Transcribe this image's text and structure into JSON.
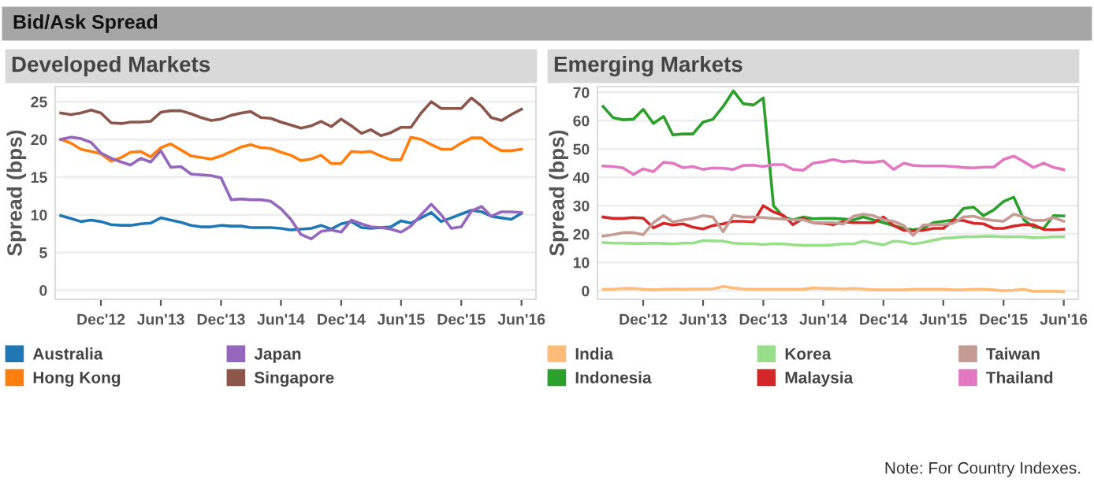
{
  "chart_data": [
    {
      "type": "line",
      "title": "Developed Markets",
      "ylabel": "Spread (bps)",
      "annotations": [
        "Bid/Ask Spread"
      ],
      "x": [
        "2012-08",
        "2012-09",
        "2012-10",
        "2012-11",
        "2012-12",
        "2013-01",
        "2013-02",
        "2013-03",
        "2013-04",
        "2013-05",
        "2013-06",
        "2013-07",
        "2013-08",
        "2013-09",
        "2013-10",
        "2013-11",
        "2013-12",
        "2014-01",
        "2014-02",
        "2014-03",
        "2014-04",
        "2014-05",
        "2014-06",
        "2014-07",
        "2014-08",
        "2014-09",
        "2014-10",
        "2014-11",
        "2014-12",
        "2015-01",
        "2015-02",
        "2015-03",
        "2015-04",
        "2015-05",
        "2015-06",
        "2015-07",
        "2015-08",
        "2015-09",
        "2015-10",
        "2015-11",
        "2015-12",
        "2016-01",
        "2016-02",
        "2016-03",
        "2016-04",
        "2016-05",
        "2016-06"
      ],
      "xlim": [
        "2012-07-15",
        "2016-07-15"
      ],
      "xticks": [
        {
          "value": "2012-12",
          "label": "Dec'12"
        },
        {
          "value": "2013-06",
          "label": "Jun'13"
        },
        {
          "value": "2013-12",
          "label": "Dec'13"
        },
        {
          "value": "2014-06",
          "label": "Jun'14"
        },
        {
          "value": "2014-12",
          "label": "Dec'14"
        },
        {
          "value": "2015-06",
          "label": "Jun'15"
        },
        {
          "value": "2015-12",
          "label": "Dec'15"
        },
        {
          "value": "2016-06",
          "label": "Jun'16"
        }
      ],
      "ylim": [
        -1.2,
        27
      ],
      "yticks": [
        0,
        5,
        10,
        15,
        20,
        25
      ],
      "grid": "y",
      "legend": "bottom",
      "series": [
        {
          "name": "Australia",
          "color": "#1f77b4",
          "values": [
            9.9,
            9.5,
            9.1,
            9.3,
            9.1,
            8.7,
            8.6,
            8.6,
            8.8,
            8.9,
            9.6,
            9.3,
            9.0,
            8.6,
            8.4,
            8.4,
            8.6,
            8.5,
            8.5,
            8.3,
            8.3,
            8.3,
            8.2,
            8.0,
            8.1,
            8.2,
            8.6,
            8.1,
            8.8,
            9.1,
            8.3,
            8.2,
            8.3,
            8.4,
            9.2,
            8.9,
            9.6,
            10.3,
            9.1,
            9.6,
            10.1,
            10.6,
            10.4,
            9.8,
            9.6,
            9.4,
            10.2
          ]
        },
        {
          "name": "Hong Kong",
          "color": "#ff7f0e",
          "values": [
            20,
            19.5,
            18.7,
            18.4,
            18.1,
            17.1,
            17.6,
            18.3,
            18.4,
            17.7,
            18.9,
            19.4,
            18.6,
            17.8,
            17.6,
            17.4,
            17.8,
            18.4,
            19,
            19.3,
            18.9,
            18.8,
            18.3,
            17.9,
            17.2,
            17.4,
            17.9,
            16.8,
            16.8,
            18.4,
            18.3,
            18.4,
            17.8,
            17.3,
            17.3,
            20.3,
            20,
            19.3,
            18.7,
            18.7,
            19.5,
            20.2,
            20.2,
            19.2,
            18.5,
            18.5,
            18.7
          ]
        },
        {
          "name": "Japan",
          "color": "#9467bd",
          "values": [
            20,
            20.3,
            20.1,
            19.6,
            18.2,
            17.5,
            17,
            16.6,
            17.5,
            17,
            18.5,
            16.3,
            16.4,
            15.4,
            15.3,
            15.2,
            14.9,
            12,
            12.1,
            12,
            12,
            11.8,
            10.8,
            9.4,
            7.4,
            6.8,
            7.8,
            8,
            7.7,
            9.3,
            8.8,
            8.4,
            8.3,
            8.1,
            7.7,
            8.5,
            10,
            11.4,
            10,
            8.2,
            8.4,
            10.5,
            11.1,
            9.8,
            10.4,
            10.4,
            10.3
          ]
        },
        {
          "name": "Singapore",
          "color": "#8c564b",
          "values": [
            23.5,
            23.3,
            23.5,
            23.9,
            23.5,
            22.2,
            22.1,
            22.3,
            22.3,
            22.4,
            23.6,
            23.8,
            23.8,
            23.4,
            22.9,
            22.5,
            22.7,
            23.2,
            23.5,
            23.7,
            22.9,
            22.8,
            22.3,
            21.9,
            21.5,
            21.8,
            22.4,
            21.7,
            22.7,
            21.8,
            20.8,
            21.3,
            20.5,
            20.9,
            21.6,
            21.6,
            23.5,
            25,
            24.1,
            24.1,
            24.1,
            25.5,
            24.4,
            22.9,
            22.5,
            23.3,
            24
          ]
        }
      ]
    },
    {
      "type": "line",
      "title": "Emerging Markets",
      "ylabel": "Spread (bps)",
      "annotations": [
        "Note: For Country Indexes."
      ],
      "x": [
        "2012-08",
        "2012-09",
        "2012-10",
        "2012-11",
        "2012-12",
        "2013-01",
        "2013-02",
        "2013-03",
        "2013-04",
        "2013-05",
        "2013-06",
        "2013-07",
        "2013-08",
        "2013-09",
        "2013-10",
        "2013-11",
        "2013-12",
        "2014-01",
        "2014-02",
        "2014-03",
        "2014-04",
        "2014-05",
        "2014-06",
        "2014-07",
        "2014-08",
        "2014-09",
        "2014-10",
        "2014-11",
        "2014-12",
        "2015-01",
        "2015-02",
        "2015-03",
        "2015-04",
        "2015-05",
        "2015-06",
        "2015-07",
        "2015-08",
        "2015-09",
        "2015-10",
        "2015-11",
        "2015-12",
        "2016-01",
        "2016-02",
        "2016-03",
        "2016-04",
        "2016-05",
        "2016-06"
      ],
      "xlim": [
        "2012-07-15",
        "2016-07-15"
      ],
      "xticks": [
        {
          "value": "2012-12",
          "label": "Dec'12"
        },
        {
          "value": "2013-06",
          "label": "Jun'13"
        },
        {
          "value": "2013-12",
          "label": "Dec'13"
        },
        {
          "value": "2014-06",
          "label": "Jun'14"
        },
        {
          "value": "2014-12",
          "label": "Dec'14"
        },
        {
          "value": "2015-06",
          "label": "Jun'15"
        },
        {
          "value": "2015-12",
          "label": "Dec'15"
        },
        {
          "value": "2016-06",
          "label": "Jun'16"
        }
      ],
      "ylim": [
        -3,
        72
      ],
      "yticks": [
        0,
        10,
        20,
        30,
        40,
        50,
        60,
        70
      ],
      "grid": "y",
      "legend": "bottom",
      "series": [
        {
          "name": "India",
          "color": "#ffbb78",
          "values": [
            0.5,
            0.5,
            0.8,
            0.8,
            0.5,
            0.3,
            0.5,
            0.6,
            0.5,
            0.6,
            0.6,
            0.7,
            1.5,
            1,
            0.6,
            0.5,
            0.5,
            0.5,
            0.5,
            0.5,
            0.5,
            1,
            0.8,
            0.8,
            0.6,
            0.8,
            0.6,
            0.3,
            0.3,
            0.3,
            0.3,
            0.5,
            0.5,
            0.5,
            0.5,
            0.3,
            0.3,
            0.5,
            0.5,
            0.3,
            0,
            0.2,
            0.5,
            -0.2,
            -0.2,
            -0.2,
            -0.3
          ]
        },
        {
          "name": "Indonesia",
          "color": "#2ca02c",
          "values": [
            65,
            61,
            60.3,
            60.5,
            64,
            59,
            61.5,
            55,
            55.3,
            55.3,
            59.5,
            60.5,
            65,
            70.5,
            66,
            65.5,
            68,
            30,
            26,
            25,
            26,
            25.4,
            25.5,
            25.5,
            25.3,
            25,
            26,
            25,
            24,
            23,
            22,
            21.5,
            22,
            24,
            24.5,
            25,
            29,
            29.5,
            26.5,
            28.5,
            31.5,
            33,
            25,
            22.5,
            22,
            26.5,
            26.4
          ]
        },
        {
          "name": "Korea",
          "color": "#98df8a",
          "values": [
            17,
            16.8,
            16.8,
            16.7,
            16.7,
            16.8,
            16.7,
            16.5,
            16.8,
            16.8,
            17.7,
            17.6,
            17.5,
            16.8,
            16.6,
            16.6,
            16.3,
            16.6,
            16.5,
            16.2,
            16,
            16,
            16,
            16.2,
            16.5,
            16.5,
            17.5,
            16.8,
            16.2,
            17.5,
            17.2,
            16.5,
            17,
            17.8,
            18.5,
            18.7,
            19,
            19,
            19.2,
            19.2,
            19,
            19,
            19,
            18.7,
            18.8,
            19,
            19
          ]
        },
        {
          "name": "Malaysia",
          "color": "#d62728",
          "values": [
            26,
            25.5,
            25.5,
            25.8,
            25.6,
            22.2,
            23.8,
            23.2,
            23.6,
            22.4,
            21.8,
            23,
            23.6,
            24.5,
            24.5,
            24.3,
            30,
            27.8,
            26.5,
            23.3,
            25.5,
            24,
            23.8,
            23.3,
            24.3,
            24,
            24,
            24,
            26,
            23,
            21.3,
            21.2,
            21.3,
            22,
            22,
            24.8,
            24.8,
            23.8,
            23.6,
            22,
            22,
            22.8,
            23.3,
            23.3,
            21.6,
            21.5,
            21.7
          ]
        },
        {
          "name": "Taiwan",
          "color": "#c49c94",
          "values": [
            19.3,
            19.8,
            20.5,
            20.5,
            19.8,
            24,
            26.5,
            24.2,
            25,
            25.5,
            26.5,
            26,
            20.8,
            26.6,
            26,
            26,
            25.8,
            25.5,
            25.3,
            25,
            25,
            24,
            24,
            24,
            23.5,
            26.3,
            27,
            26.5,
            25,
            24.5,
            23,
            19.5,
            23.2,
            23.3,
            23.3,
            23.8,
            26,
            26.3,
            25.3,
            24.8,
            24.5,
            27,
            26,
            24.8,
            24.8,
            25.8,
            24.5
          ]
        },
        {
          "name": "Thailand",
          "color": "#e377c2",
          "values": [
            44,
            43.8,
            43.3,
            41,
            43,
            42,
            45.3,
            45,
            43.4,
            43.8,
            42.8,
            43.3,
            43.2,
            42.8,
            44.2,
            44.3,
            43.8,
            44.5,
            44.5,
            42.8,
            42.5,
            45,
            45.5,
            46.3,
            45.5,
            45.8,
            45.3,
            45.3,
            45.8,
            42.8,
            45,
            44.2,
            44,
            44,
            44,
            43.8,
            43.5,
            43.3,
            43.6,
            43.6,
            46.3,
            47.5,
            45.5,
            43.5,
            45,
            43.5,
            42.7
          ]
        }
      ]
    }
  ]
}
